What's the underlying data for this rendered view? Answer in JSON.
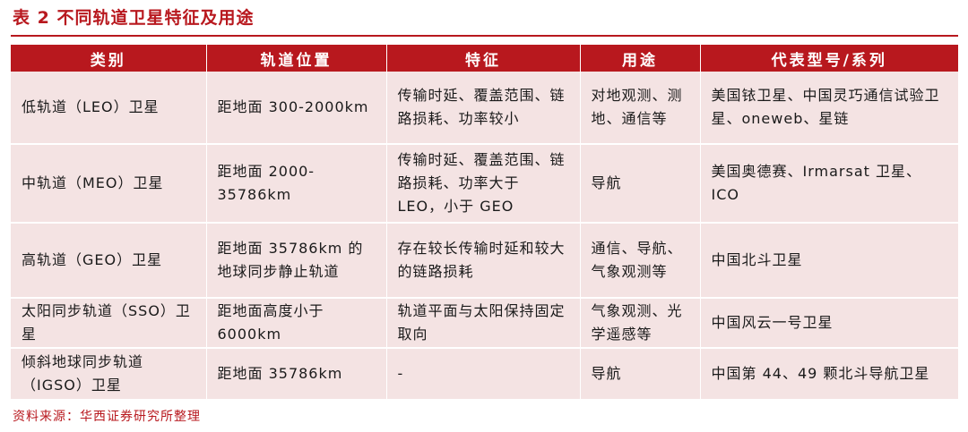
{
  "title": "表 2  不同轨道卫星特征及用途",
  "table": {
    "headers": [
      "类别",
      "轨道位置",
      "特征",
      "用途",
      "代表型号/系列"
    ],
    "rows": [
      [
        "低轨道（LEO）卫星",
        "距地面 300-2000km",
        "传输时延、覆盖范围、链路损耗、功率较小",
        "对地观测、测地、通信等",
        "美国铱卫星、中国灵巧通信试验卫星、oneweb、星链"
      ],
      [
        "中轨道（MEO）卫星",
        "距地面 2000-35786km",
        "传输时延、覆盖范围、链路损耗、功率大于 LEO，小于 GEO",
        "导航",
        "美国奥德赛、Irmarsat 卫星、ICO"
      ],
      [
        "高轨道（GEO）卫星",
        "距地面 35786km 的地球同步静止轨道",
        "存在较长传输时延和较大的链路损耗",
        "通信、导航、气象观测等",
        "中国北斗卫星"
      ],
      [
        "太阳同步轨道（SSO）卫星",
        "距地面高度小于 6000km",
        "轨道平面与太阳保持固定取向",
        "气象观测、光学遥感等",
        "中国风云一号卫星"
      ],
      [
        "倾斜地球同步轨道（IGSO）卫星",
        "距地面 35786km",
        "-",
        "导航",
        "中国第 44、49 颗北斗导航卫星"
      ]
    ]
  },
  "source": "资料来源：华西证券研究所整理"
}
